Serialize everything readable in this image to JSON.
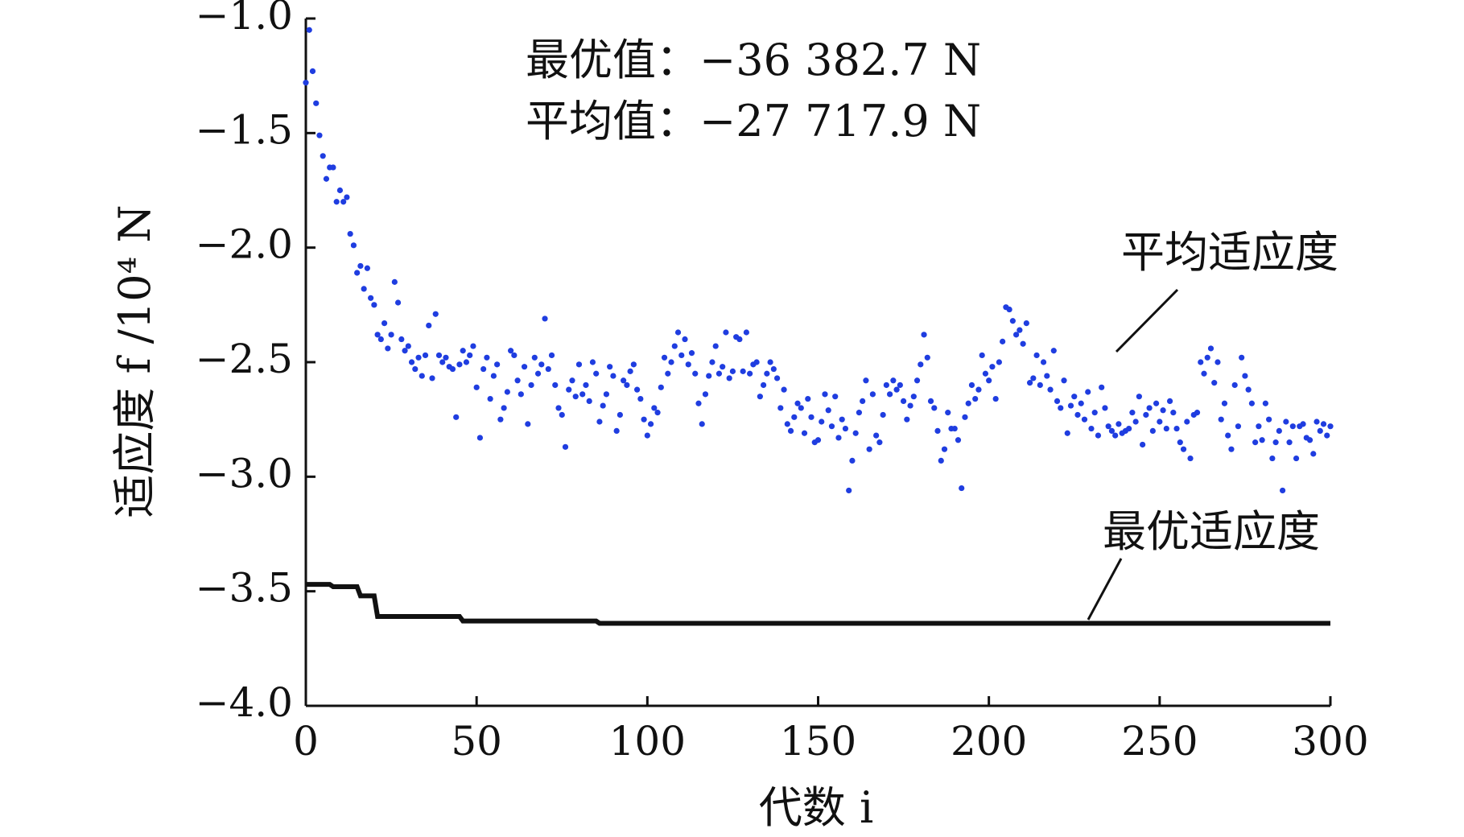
{
  "chart_data": {
    "type": "scatter",
    "annotations": [
      "最优值：−36 382.7 N",
      "平均值：−27 717.9 N"
    ],
    "x_label": "代数 i",
    "y_label": "适应度 f /10⁴ N",
    "xlim": [
      0,
      300
    ],
    "xticks": [
      0,
      50,
      100,
      150,
      200,
      250,
      300
    ],
    "ylim": [
      -4,
      -1
    ],
    "yticks": [
      {
        "value": -1,
        "label": "−1.0"
      },
      {
        "value": -1.5,
        "label": "−1.5"
      },
      {
        "value": -2,
        "label": "−2.0"
      },
      {
        "value": -2.5,
        "label": "−2.5"
      },
      {
        "value": -3,
        "label": "−3.0"
      },
      {
        "value": -3.5,
        "label": "−3.5"
      },
      {
        "value": -4,
        "label": "−4.0"
      }
    ],
    "series": [
      {
        "name": "平均适应度",
        "color": "#1f3de0",
        "mode": "markers",
        "x": [
          0,
          1,
          2,
          3,
          4,
          5,
          6,
          7,
          8,
          9,
          10,
          11,
          12,
          13,
          14,
          15,
          16,
          17,
          18,
          19,
          20,
          21,
          22,
          23,
          24,
          25,
          26,
          27,
          28,
          29,
          30,
          31,
          32,
          33,
          34,
          35,
          36,
          37,
          38,
          39,
          40,
          41,
          42,
          43,
          44,
          45,
          46,
          47,
          48,
          49,
          50,
          51,
          52,
          53,
          54,
          55,
          56,
          57,
          58,
          59,
          60,
          61,
          62,
          63,
          64,
          65,
          66,
          67,
          68,
          69,
          70,
          71,
          72,
          73,
          74,
          75,
          76,
          77,
          78,
          79,
          80,
          81,
          82,
          83,
          84,
          85,
          86,
          87,
          88,
          89,
          90,
          91,
          92,
          93,
          94,
          95,
          96,
          97,
          98,
          99,
          100,
          101,
          102,
          103,
          104,
          105,
          106,
          107,
          108,
          109,
          110,
          111,
          112,
          113,
          114,
          115,
          116,
          117,
          118,
          119,
          120,
          121,
          122,
          123,
          124,
          125,
          126,
          127,
          128,
          129,
          130,
          131,
          132,
          133,
          134,
          135,
          136,
          137,
          138,
          139,
          140,
          141,
          142,
          143,
          144,
          145,
          146,
          147,
          148,
          149,
          150,
          151,
          152,
          153,
          154,
          155,
          156,
          157,
          158,
          159,
          160,
          161,
          162,
          163,
          164,
          165,
          166,
          167,
          168,
          169,
          170,
          171,
          172,
          173,
          174,
          175,
          176,
          177,
          178,
          179,
          180,
          181,
          182,
          183,
          184,
          185,
          186,
          187,
          188,
          189,
          190,
          191,
          192,
          193,
          194,
          195,
          196,
          197,
          198,
          199,
          200,
          201,
          202,
          203,
          204,
          205,
          206,
          207,
          208,
          209,
          210,
          211,
          212,
          213,
          214,
          215,
          216,
          217,
          218,
          219,
          220,
          221,
          222,
          223,
          224,
          225,
          226,
          227,
          228,
          229,
          230,
          231,
          232,
          233,
          234,
          235,
          236,
          237,
          238,
          239,
          240,
          241,
          242,
          243,
          244,
          245,
          246,
          247,
          248,
          249,
          250,
          251,
          252,
          253,
          254,
          255,
          256,
          257,
          258,
          259,
          260,
          261,
          262,
          263,
          264,
          265,
          266,
          267,
          268,
          269,
          270,
          271,
          272,
          273,
          274,
          275,
          276,
          277,
          278,
          279,
          280,
          281,
          282,
          283,
          284,
          285,
          286,
          287,
          288,
          289,
          290,
          291,
          292,
          293,
          294,
          295,
          296,
          297,
          298,
          299,
          300
        ],
        "values": [
          -1.28,
          -1.05,
          -1.23,
          -1.37,
          -1.51,
          -1.6,
          -1.7,
          -1.65,
          -1.65,
          -1.8,
          -1.75,
          -1.8,
          -1.78,
          -1.94,
          -1.99,
          -2.11,
          -2.08,
          -2.18,
          -2.09,
          -2.22,
          -2.25,
          -2.38,
          -2.4,
          -2.33,
          -2.44,
          -2.38,
          -2.15,
          -2.24,
          -2.4,
          -2.45,
          -2.43,
          -2.5,
          -2.53,
          -2.48,
          -2.56,
          -2.47,
          -2.34,
          -2.57,
          -2.29,
          -2.47,
          -2.5,
          -2.48,
          -2.52,
          -2.53,
          -2.74,
          -2.51,
          -2.45,
          -2.5,
          -2.47,
          -2.43,
          -2.61,
          -2.83,
          -2.53,
          -2.48,
          -2.66,
          -2.56,
          -2.51,
          -2.75,
          -2.7,
          -2.63,
          -2.45,
          -2.47,
          -2.58,
          -2.64,
          -2.52,
          -2.77,
          -2.6,
          -2.48,
          -2.55,
          -2.51,
          -2.31,
          -2.53,
          -2.47,
          -2.6,
          -2.7,
          -2.73,
          -2.87,
          -2.62,
          -2.58,
          -2.65,
          -2.51,
          -2.64,
          -2.6,
          -2.67,
          -2.5,
          -2.55,
          -2.76,
          -2.69,
          -2.64,
          -2.52,
          -2.56,
          -2.8,
          -2.73,
          -2.58,
          -2.6,
          -2.54,
          -2.51,
          -2.62,
          -2.66,
          -2.75,
          -2.82,
          -2.77,
          -2.7,
          -2.72,
          -2.61,
          -2.48,
          -2.55,
          -2.5,
          -2.43,
          -2.37,
          -2.47,
          -2.4,
          -2.51,
          -2.46,
          -2.55,
          -2.68,
          -2.77,
          -2.64,
          -2.56,
          -2.5,
          -2.43,
          -2.55,
          -2.52,
          -2.37,
          -2.57,
          -2.54,
          -2.39,
          -2.4,
          -2.54,
          -2.37,
          -2.55,
          -2.51,
          -2.5,
          -2.65,
          -2.6,
          -2.55,
          -2.5,
          -2.53,
          -2.57,
          -2.7,
          -2.62,
          -2.77,
          -2.8,
          -2.74,
          -2.68,
          -2.7,
          -2.81,
          -2.66,
          -2.74,
          -2.85,
          -2.84,
          -2.76,
          -2.64,
          -2.71,
          -2.78,
          -2.65,
          -2.83,
          -2.75,
          -2.79,
          -3.06,
          -2.93,
          -2.81,
          -2.72,
          -2.67,
          -2.58,
          -2.88,
          -2.64,
          -2.82,
          -2.85,
          -2.73,
          -2.6,
          -2.64,
          -2.58,
          -2.62,
          -2.6,
          -2.67,
          -2.75,
          -2.69,
          -2.65,
          -2.58,
          -2.51,
          -2.38,
          -2.48,
          -2.67,
          -2.7,
          -2.8,
          -2.93,
          -2.88,
          -2.72,
          -2.79,
          -2.79,
          -2.84,
          -3.05,
          -2.74,
          -2.68,
          -2.6,
          -2.66,
          -2.62,
          -2.47,
          -2.55,
          -2.58,
          -2.52,
          -2.66,
          -2.5,
          -2.41,
          -2.26,
          -2.27,
          -2.32,
          -2.38,
          -2.36,
          -2.42,
          -2.33,
          -2.59,
          -2.57,
          -2.47,
          -2.6,
          -2.5,
          -2.56,
          -2.62,
          -2.45,
          -2.67,
          -2.7,
          -2.58,
          -2.81,
          -2.69,
          -2.65,
          -2.73,
          -2.68,
          -2.75,
          -2.63,
          -2.79,
          -2.72,
          -2.82,
          -2.61,
          -2.7,
          -2.78,
          -2.8,
          -2.82,
          -2.77,
          -2.81,
          -2.8,
          -2.79,
          -2.72,
          -2.76,
          -2.65,
          -2.86,
          -2.73,
          -2.7,
          -2.8,
          -2.68,
          -2.76,
          -2.71,
          -2.79,
          -2.67,
          -2.72,
          -2.79,
          -2.85,
          -2.88,
          -2.76,
          -2.92,
          -2.73,
          -2.72,
          -2.5,
          -2.55,
          -2.48,
          -2.44,
          -2.59,
          -2.5,
          -2.75,
          -2.68,
          -2.82,
          -2.88,
          -2.6,
          -2.78,
          -2.48,
          -2.56,
          -2.62,
          -2.68,
          -2.85,
          -2.78,
          -2.84,
          -2.68,
          -2.75,
          -2.92,
          -2.85,
          -2.8,
          -3.06,
          -2.76,
          -2.85,
          -2.78,
          -2.92,
          -2.78,
          -2.77,
          -2.83,
          -2.84,
          -2.9,
          -2.76,
          -2.8,
          -2.77,
          -2.82,
          -2.78
        ]
      },
      {
        "name": "最优适应度",
        "color": "#111111",
        "mode": "line",
        "x": [
          0,
          7,
          8,
          15,
          16,
          20,
          21,
          45,
          46,
          85,
          86,
          300
        ],
        "values": [
          -3.47,
          -3.47,
          -3.48,
          -3.48,
          -3.52,
          -3.52,
          -3.61,
          -3.61,
          -3.63,
          -3.63,
          -3.64,
          -3.64
        ]
      }
    ]
  }
}
